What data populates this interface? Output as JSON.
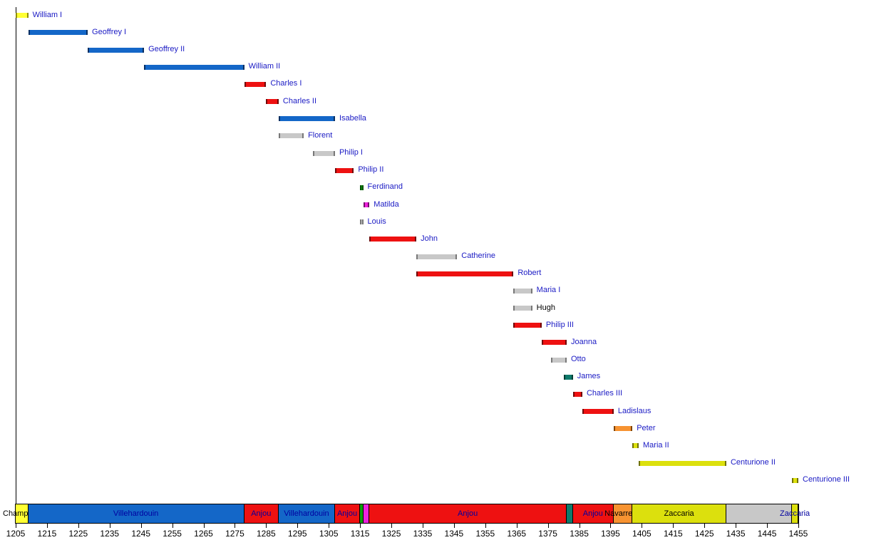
{
  "chart_data": {
    "type": "bar",
    "subtype": "gantt-timeline",
    "title": "",
    "xlabel": "",
    "ylabel": "",
    "xlim": [
      1205,
      1455
    ],
    "grid": false,
    "legend": null,
    "x_axis": {
      "min": 1205,
      "max": 1455,
      "tick_interval": 10,
      "tick_labels": [
        "1205",
        "1215",
        "1225",
        "1235",
        "1245",
        "1255",
        "1265",
        "1275",
        "1285",
        "1295",
        "1305",
        "1315",
        "1325",
        "1335",
        "1345",
        "1355",
        "1365",
        "1375",
        "1385",
        "1395",
        "1405",
        "1415",
        "1425",
        "1435",
        "1445",
        "1455"
      ]
    },
    "rulers": [
      {
        "name": "William I",
        "from": 1205,
        "till": 1209,
        "color": "yellow_bright",
        "name_color": "navy"
      },
      {
        "name": "Geoffrey I",
        "from": 1209,
        "till": 1228,
        "color": "blue",
        "name_color": "navy"
      },
      {
        "name": "Geoffrey II",
        "from": 1228,
        "till": 1246,
        "color": "blue",
        "name_color": "navy"
      },
      {
        "name": "William II",
        "from": 1246,
        "till": 1278,
        "color": "blue",
        "name_color": "navy"
      },
      {
        "name": "Charles I",
        "from": 1278,
        "till": 1285,
        "color": "red",
        "name_color": "navy"
      },
      {
        "name": "Charles II",
        "from": 1285,
        "till": 1289,
        "color": "red",
        "name_color": "navy"
      },
      {
        "name": "Isabella",
        "from": 1289,
        "till": 1307,
        "color": "blue",
        "name_color": "navy"
      },
      {
        "name": "Florent",
        "from": 1289,
        "till": 1297,
        "color": "silver",
        "name_color": "navy"
      },
      {
        "name": "Philip I",
        "from": 1300,
        "till": 1307,
        "color": "silver",
        "name_color": "navy"
      },
      {
        "name": "Philip II",
        "from": 1307,
        "till": 1313,
        "color": "red",
        "name_color": "navy"
      },
      {
        "name": "Ferdinand",
        "from": 1315,
        "till": 1316,
        "color": "green",
        "name_color": "navy"
      },
      {
        "name": "Matilda",
        "from": 1316,
        "till": 1318,
        "color": "magenta",
        "name_color": "navy"
      },
      {
        "name": "Louis",
        "from": 1315,
        "till": 1316,
        "color": "silver",
        "name_color": "navy"
      },
      {
        "name": "John",
        "from": 1318,
        "till": 1333,
        "color": "red",
        "name_color": "navy"
      },
      {
        "name": "Catherine",
        "from": 1333,
        "till": 1346,
        "color": "silver",
        "name_color": "navy"
      },
      {
        "name": "Robert",
        "from": 1333,
        "till": 1364,
        "color": "red",
        "name_color": "navy"
      },
      {
        "name": "Maria I",
        "from": 1364,
        "till": 1370,
        "color": "silver",
        "name_color": "navy"
      },
      {
        "name": "Hugh",
        "from": 1364,
        "till": 1370,
        "color": "silver",
        "name_color": "black"
      },
      {
        "name": "Philip III",
        "from": 1364,
        "till": 1373,
        "color": "red",
        "name_color": "navy"
      },
      {
        "name": "Joanna",
        "from": 1373,
        "till": 1381,
        "color": "red",
        "name_color": "navy"
      },
      {
        "name": "Otto",
        "from": 1376,
        "till": 1381,
        "color": "silver",
        "name_color": "navy"
      },
      {
        "name": "James",
        "from": 1380,
        "till": 1383,
        "color": "teal",
        "name_color": "navy"
      },
      {
        "name": "Charles III",
        "from": 1383,
        "till": 1386,
        "color": "red",
        "name_color": "navy"
      },
      {
        "name": "Ladislaus",
        "from": 1386,
        "till": 1396,
        "color": "red",
        "name_color": "navy"
      },
      {
        "name": "Peter",
        "from": 1396,
        "till": 1402,
        "color": "orange",
        "name_color": "navy"
      },
      {
        "name": "Maria II",
        "from": 1402,
        "till": 1404,
        "color": "yellow",
        "name_color": "navy"
      },
      {
        "name": "Centurione II",
        "from": 1404,
        "till": 1432,
        "color": "yellow",
        "name_color": "navy"
      },
      {
        "name": "Centurione III",
        "from": 1453,
        "till": 1455,
        "color": "yellow",
        "name_color": "navy"
      }
    ],
    "dynasty_band": [
      {
        "label": "Champlitte",
        "from": 1205,
        "till": 1209,
        "color": "yellow_bright",
        "label_color": "black"
      },
      {
        "label": "Villehardouin",
        "from": 1209,
        "till": 1278,
        "color": "blue",
        "label_color": "band_navy"
      },
      {
        "label": "Anjou",
        "from": 1278,
        "till": 1289,
        "color": "red",
        "label_color": "band_navy"
      },
      {
        "label": "Villehardouin",
        "from": 1289,
        "till": 1307,
        "color": "blue",
        "label_color": "band_navy"
      },
      {
        "label": "Anjou",
        "from": 1307,
        "till": 1315,
        "color": "red",
        "label_color": "band_navy"
      },
      {
        "label": "",
        "from": 1315,
        "till": 1316,
        "color": "green",
        "label_color": "black"
      },
      {
        "label": "",
        "from": 1316,
        "till": 1318,
        "color": "magenta",
        "label_color": "black"
      },
      {
        "label": "Anjou",
        "from": 1318,
        "till": 1381,
        "color": "red",
        "label_color": "band_navy"
      },
      {
        "label": "",
        "from": 1381,
        "till": 1383,
        "color": "teal",
        "label_color": "black"
      },
      {
        "label": "Anjou",
        "from": 1383,
        "till": 1396,
        "color": "red",
        "label_color": "band_navy"
      },
      {
        "label": "Navarrese",
        "from": 1396,
        "till": 1402,
        "color": "orange",
        "label_color": "black"
      },
      {
        "label": "Zaccaria",
        "from": 1402,
        "till": 1432,
        "color": "yellow",
        "label_color": "black"
      },
      {
        "label": "",
        "from": 1432,
        "till": 1453,
        "color": "silver",
        "label_color": "black"
      },
      {
        "label": "Zaccaria",
        "from": 1453,
        "till": 1455,
        "color": "yellow",
        "label_color": "band_navy"
      }
    ]
  },
  "colors": {
    "palette": {
      "yellow_bright": {
        "fill": "#ffff33",
        "cap": "#8f8f00"
      },
      "yellow": {
        "fill": "#dce00d",
        "cap": "#6f7107"
      },
      "blue": {
        "fill": "#1467c8",
        "cap": "#082f63"
      },
      "red": {
        "fill": "#ee1111",
        "cap": "#700707"
      },
      "silver": {
        "fill": "#c8c8c8",
        "cap": "#787878"
      },
      "green": {
        "fill": "#0aa00a",
        "cap": "#054d05"
      },
      "magenta": {
        "fill": "#ee22dd",
        "cap": "#75086c"
      },
      "teal": {
        "fill": "#0e7a6b",
        "cap": "#063d35"
      },
      "orange": {
        "fill": "#f79331",
        "cap": "#7e4509"
      }
    },
    "text": {
      "navy": "#1a1ac4",
      "band_navy": "#0000a0",
      "black": "#000000"
    },
    "axis_line": "#000000"
  }
}
